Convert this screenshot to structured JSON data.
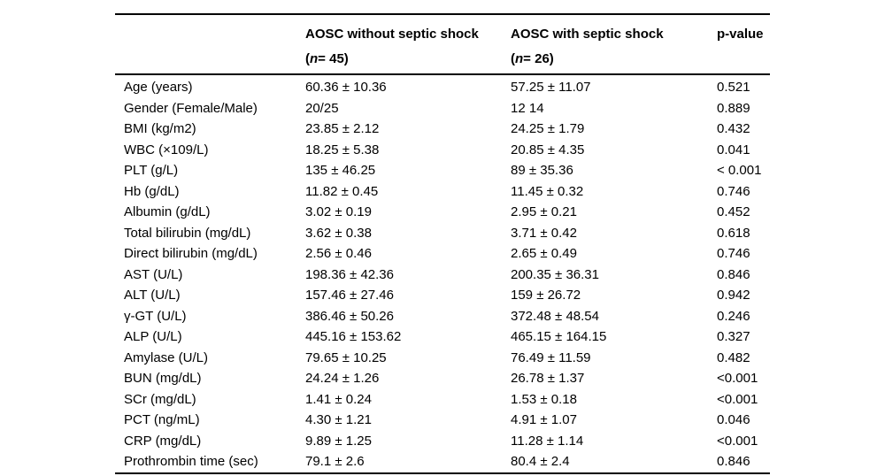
{
  "table": {
    "header": {
      "group1": {
        "title": "AOSC without septic shock",
        "sub_open": "(",
        "sub_n": "n",
        "sub_rest": " = 45)"
      },
      "group2": {
        "title": "AOSC with septic shock",
        "sub_open": "(",
        "sub_n": "n",
        "sub_rest": " = 26)"
      },
      "pvalue_label": "p-value"
    },
    "rows": [
      [
        "Age (years)",
        "60.36 ± 10.36",
        "57.25 ± 11.07",
        "0.521"
      ],
      [
        "Gender (Female/Male)",
        "20/25",
        "12 14",
        "0.889"
      ],
      [
        "BMI (kg/m2)",
        "23.85 ± 2.12",
        "24.25 ± 1.79",
        "0.432"
      ],
      [
        "WBC (×109/L)",
        "18.25 ± 5.38",
        "20.85 ± 4.35",
        "0.041"
      ],
      [
        "PLT (g/L)",
        "135 ± 46.25",
        "89 ± 35.36",
        "< 0.001"
      ],
      [
        "Hb (g/dL)",
        "11.82 ± 0.45",
        "11.45 ± 0.32",
        "0.746"
      ],
      [
        "Albumin (g/dL)",
        "3.02 ± 0.19",
        "2.95 ± 0.21",
        "0.452"
      ],
      [
        "Total bilirubin (mg/dL)",
        "3.62 ± 0.38",
        "3.71 ± 0.42",
        "0.618"
      ],
      [
        "Direct bilirubin (mg/dL)",
        "2.56 ± 0.46",
        "2.65 ± 0.49",
        "0.746"
      ],
      [
        "AST (U/L)",
        "198.36 ± 42.36",
        "200.35 ± 36.31",
        "0.846"
      ],
      [
        "ALT (U/L)",
        "157.46 ± 27.46",
        "159 ± 26.72",
        "0.942"
      ],
      [
        "γ-GT (U/L)",
        "386.46 ± 50.26",
        "372.48 ± 48.54",
        "0.246"
      ],
      [
        "ALP (U/L)",
        "445.16 ± 153.62",
        "465.15 ± 164.15",
        "0.327"
      ],
      [
        "Amylase (U/L)",
        "79.65 ± 10.25",
        "76.49 ± 11.59",
        "0.482"
      ],
      [
        "BUN (mg/dL)",
        "24.24 ± 1.26",
        "26.78 ± 1.37",
        "<0.001"
      ],
      [
        "SCr (mg/dL)",
        "1.41 ± 0.24",
        "1.53 ± 0.18",
        "<0.001"
      ],
      [
        "PCT (ng/mL)",
        "4.30 ± 1.21",
        "4.91 ± 1.07",
        "0.046"
      ],
      [
        "CRP (mg/dL)",
        "9.89 ± 1.25",
        "11.28 ± 1.14",
        "<0.001"
      ],
      [
        "Prothrombin time (sec)",
        "79.1 ± 2.6",
        "80.4 ± 2.4",
        "0.846"
      ]
    ],
    "cell_names": [
      "row-label",
      "value-without-shock",
      "value-with-shock",
      "p-value"
    ]
  }
}
